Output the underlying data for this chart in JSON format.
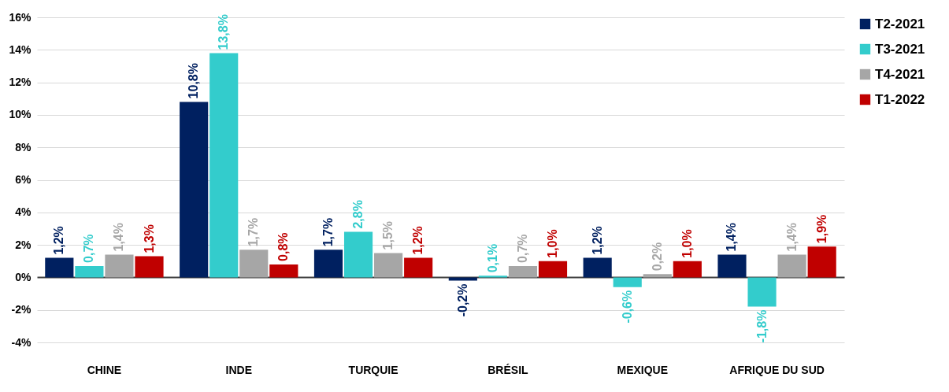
{
  "chart_data": {
    "type": "bar",
    "categories": [
      "CHINE",
      "INDE",
      "TURQUIE",
      "BRÉSIL",
      "MEXIQUE",
      "AFRIQUE DU SUD"
    ],
    "series": [
      {
        "name": "T2-2021",
        "color": "#002060",
        "values": [
          1.2,
          10.8,
          1.7,
          -0.2,
          1.2,
          1.4
        ],
        "value_labels": [
          "1,2%",
          "10,8%",
          "1,7%",
          "-0,2%",
          "1,2%",
          "1,4%"
        ]
      },
      {
        "name": "T3-2021",
        "color": "#33cccc",
        "values": [
          0.7,
          13.8,
          2.8,
          0.1,
          -0.6,
          -1.8
        ],
        "value_labels": [
          "0,7%",
          "13,8%",
          "2,8%",
          "0,1%",
          "-0,6%",
          "-1,8%"
        ]
      },
      {
        "name": "T4-2021",
        "color": "#a6a6a6",
        "values": [
          1.4,
          1.7,
          1.5,
          0.7,
          0.2,
          1.4
        ],
        "value_labels": [
          "1,4%",
          "1,7%",
          "1,5%",
          "0,7%",
          "0,2%",
          "1,4%"
        ]
      },
      {
        "name": "T1-2022",
        "color": "#c00000",
        "values": [
          1.3,
          0.8,
          1.2,
          1.0,
          1.0,
          1.9
        ],
        "value_labels": [
          "1,3%",
          "0,8%",
          "1,2%",
          "1,0%",
          "1,0%",
          "1,9%"
        ]
      }
    ],
    "ylim": [
      -4,
      16
    ],
    "yticks": [
      {
        "value": -4,
        "label": "-4%"
      },
      {
        "value": -2,
        "label": "-2%"
      },
      {
        "value": 0,
        "label": "0%"
      },
      {
        "value": 2,
        "label": "2%"
      },
      {
        "value": 4,
        "label": "4%"
      },
      {
        "value": 6,
        "label": "6%"
      },
      {
        "value": 8,
        "label": "8%"
      },
      {
        "value": 10,
        "label": "10%"
      },
      {
        "value": 12,
        "label": "12%"
      },
      {
        "value": 14,
        "label": "14%"
      },
      {
        "value": 16,
        "label": "16%"
      }
    ],
    "grid": "y",
    "legend": "right"
  }
}
